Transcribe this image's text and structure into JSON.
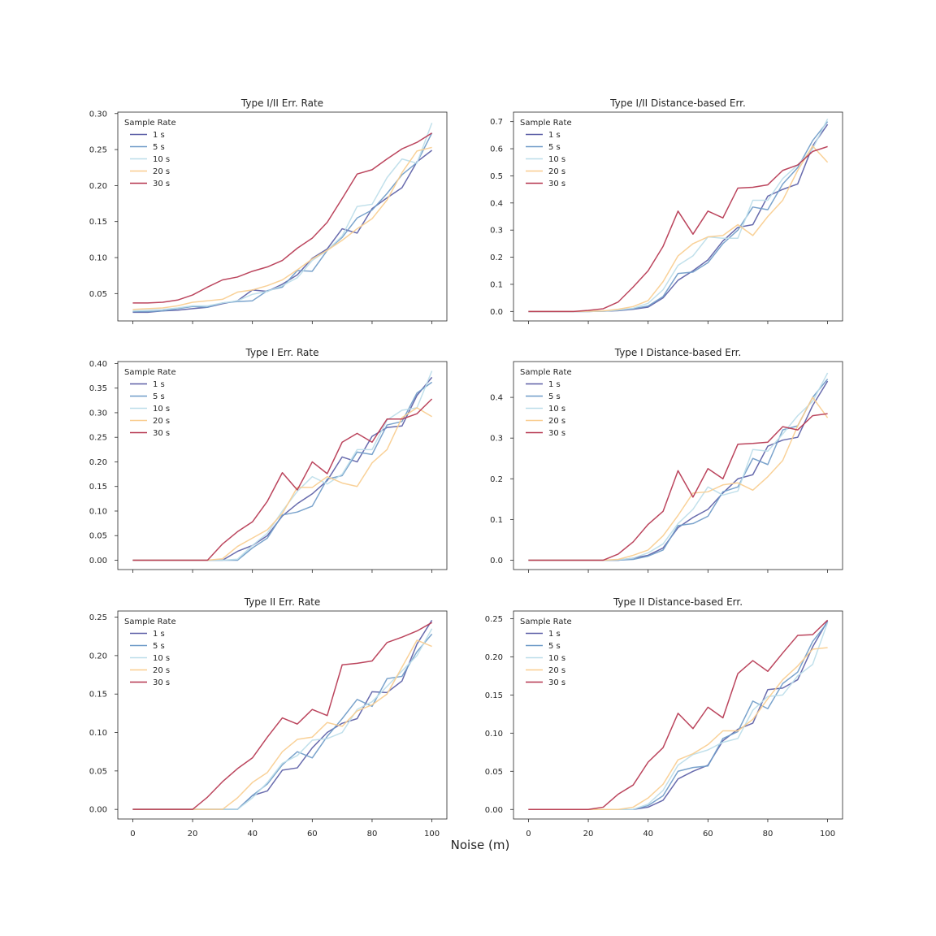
{
  "figure": {
    "xlabel": "Noise (m)"
  },
  "legend": {
    "title": "Sample Rate",
    "labels": [
      "1 s",
      "5 s",
      "10 s",
      "20 s",
      "30 s"
    ],
    "colors": [
      "#5b5ea6",
      "#6f9bc8",
      "#bcdde9",
      "#f9cd8f",
      "#b5354f"
    ]
  },
  "chart_data": [
    {
      "type": "line",
      "title": "Type I/II Err. Rate",
      "xlabel": "",
      "ylabel": "",
      "xlim": [
        -5,
        105
      ],
      "ylim": [
        0.012,
        0.302
      ],
      "xticks": [
        0,
        20,
        40,
        60,
        80,
        100
      ],
      "show_xtick_labels": false,
      "yticks": [
        0.05,
        0.1,
        0.15,
        0.2,
        0.25,
        0.3
      ],
      "ytick_labels": [
        "0.05",
        "0.10",
        "0.15",
        "0.20",
        "0.25",
        "0.30"
      ],
      "x": [
        0,
        5,
        10,
        15,
        20,
        25,
        30,
        35,
        40,
        45,
        50,
        55,
        60,
        65,
        70,
        75,
        80,
        85,
        90,
        95,
        100
      ],
      "series": [
        {
          "name": "1 s",
          "values": [
            0.024,
            0.024,
            0.026,
            0.027,
            0.029,
            0.031,
            0.036,
            0.04,
            0.055,
            0.053,
            0.063,
            0.076,
            0.099,
            0.112,
            0.14,
            0.134,
            0.168,
            0.183,
            0.197,
            0.233,
            0.249
          ]
        },
        {
          "name": "5 s",
          "values": [
            0.025,
            0.025,
            0.026,
            0.029,
            0.032,
            0.031,
            0.037,
            0.039,
            0.04,
            0.054,
            0.059,
            0.082,
            0.081,
            0.11,
            0.128,
            0.155,
            0.166,
            0.189,
            0.215,
            0.232,
            0.273
          ]
        },
        {
          "name": "10 s",
          "values": [
            0.026,
            0.027,
            0.028,
            0.03,
            0.033,
            0.033,
            0.037,
            0.04,
            0.049,
            0.053,
            0.061,
            0.072,
            0.096,
            0.11,
            0.13,
            0.171,
            0.174,
            0.211,
            0.237,
            0.231,
            0.287
          ]
        },
        {
          "name": "20 s",
          "values": [
            0.028,
            0.029,
            0.03,
            0.033,
            0.038,
            0.04,
            0.042,
            0.052,
            0.055,
            0.061,
            0.069,
            0.083,
            0.098,
            0.11,
            0.124,
            0.14,
            0.154,
            0.18,
            0.218,
            0.248,
            0.253
          ]
        },
        {
          "name": "30 s",
          "values": [
            0.037,
            0.037,
            0.038,
            0.041,
            0.048,
            0.059,
            0.069,
            0.073,
            0.081,
            0.087,
            0.096,
            0.113,
            0.127,
            0.149,
            0.182,
            0.216,
            0.222,
            0.237,
            0.251,
            0.26,
            0.273
          ]
        }
      ]
    },
    {
      "type": "line",
      "title": "Type I/II Distance-based Err.",
      "xlabel": "",
      "ylabel": "",
      "xlim": [
        -5,
        105
      ],
      "ylim": [
        -0.035,
        0.735
      ],
      "xticks": [
        0,
        20,
        40,
        60,
        80,
        100
      ],
      "show_xtick_labels": false,
      "yticks": [
        0.0,
        0.1,
        0.2,
        0.3,
        0.4,
        0.5,
        0.6,
        0.7
      ],
      "ytick_labels": [
        "0.0",
        "0.1",
        "0.2",
        "0.3",
        "0.4",
        "0.5",
        "0.6",
        "0.7"
      ],
      "x": [
        0,
        5,
        10,
        15,
        20,
        25,
        30,
        35,
        40,
        45,
        50,
        55,
        60,
        65,
        70,
        75,
        80,
        85,
        90,
        95,
        100
      ],
      "series": [
        {
          "name": "1 s",
          "values": [
            0.0,
            0.0,
            0.0,
            0.0,
            0.0,
            0.001,
            0.003,
            0.008,
            0.016,
            0.05,
            0.115,
            0.15,
            0.19,
            0.26,
            0.31,
            0.32,
            0.425,
            0.45,
            0.47,
            0.61,
            0.69
          ]
        },
        {
          "name": "5 s",
          "values": [
            0.0,
            0.0,
            0.0,
            0.0,
            0.0,
            0.001,
            0.004,
            0.01,
            0.02,
            0.055,
            0.14,
            0.145,
            0.18,
            0.25,
            0.3,
            0.385,
            0.375,
            0.47,
            0.53,
            0.63,
            0.7
          ]
        },
        {
          "name": "10 s",
          "values": [
            0.0,
            0.0,
            0.0,
            0.0,
            0.0,
            0.001,
            0.005,
            0.012,
            0.03,
            0.08,
            0.17,
            0.205,
            0.275,
            0.27,
            0.27,
            0.41,
            0.41,
            0.49,
            0.54,
            0.6,
            0.71
          ]
        },
        {
          "name": "20 s",
          "values": [
            0.0,
            0.0,
            0.0,
            0.0,
            0.001,
            0.002,
            0.008,
            0.018,
            0.04,
            0.11,
            0.205,
            0.25,
            0.275,
            0.28,
            0.32,
            0.28,
            0.35,
            0.41,
            0.52,
            0.61,
            0.55
          ]
        },
        {
          "name": "30 s",
          "values": [
            0.0,
            0.0,
            0.0,
            0.0,
            0.004,
            0.01,
            0.035,
            0.09,
            0.15,
            0.24,
            0.37,
            0.285,
            0.37,
            0.345,
            0.455,
            0.458,
            0.467,
            0.52,
            0.54,
            0.59,
            0.608
          ]
        }
      ]
    },
    {
      "type": "line",
      "title": "Type I Err. Rate",
      "xlabel": "",
      "ylabel": "",
      "xlim": [
        -5,
        105
      ],
      "ylim": [
        -0.019,
        0.404
      ],
      "xticks": [
        0,
        20,
        40,
        60,
        80,
        100
      ],
      "show_xtick_labels": false,
      "yticks": [
        0.0,
        0.05,
        0.1,
        0.15,
        0.2,
        0.25,
        0.3,
        0.35,
        0.4
      ],
      "ytick_labels": [
        "0.00",
        "0.05",
        "0.10",
        "0.15",
        "0.20",
        "0.25",
        "0.30",
        "0.35",
        "0.40"
      ],
      "x": [
        0,
        5,
        10,
        15,
        20,
        25,
        30,
        35,
        40,
        45,
        50,
        55,
        60,
        65,
        70,
        75,
        80,
        85,
        90,
        95,
        100
      ],
      "series": [
        {
          "name": "1 s",
          "values": [
            0.0,
            0.0,
            0.0,
            0.0,
            0.0,
            0.0,
            0.0,
            0.018,
            0.03,
            0.05,
            0.09,
            0.115,
            0.135,
            0.162,
            0.21,
            0.2,
            0.252,
            0.27,
            0.273,
            0.335,
            0.372
          ]
        },
        {
          "name": "5 s",
          "values": [
            0.0,
            0.0,
            0.0,
            0.0,
            0.0,
            0.0,
            0.0,
            0.0,
            0.025,
            0.045,
            0.092,
            0.098,
            0.11,
            0.165,
            0.172,
            0.22,
            0.215,
            0.275,
            0.282,
            0.34,
            0.362
          ]
        },
        {
          "name": "10 s",
          "values": [
            0.0,
            0.0,
            0.0,
            0.0,
            0.0,
            0.0,
            0.0,
            0.002,
            0.03,
            0.055,
            0.1,
            0.14,
            0.17,
            0.155,
            0.175,
            0.225,
            0.225,
            0.285,
            0.305,
            0.31,
            0.385
          ]
        },
        {
          "name": "20 s",
          "values": [
            0.0,
            0.0,
            0.0,
            0.0,
            0.0,
            0.0,
            0.003,
            0.028,
            0.045,
            0.062,
            0.095,
            0.148,
            0.148,
            0.17,
            0.157,
            0.15,
            0.198,
            0.225,
            0.29,
            0.31,
            0.292
          ]
        },
        {
          "name": "30 s",
          "values": [
            0.0,
            0.0,
            0.0,
            0.0,
            0.0,
            0.0,
            0.033,
            0.058,
            0.078,
            0.12,
            0.178,
            0.143,
            0.2,
            0.176,
            0.24,
            0.258,
            0.24,
            0.287,
            0.287,
            0.298,
            0.328
          ]
        }
      ]
    },
    {
      "type": "line",
      "title": "Type I Distance-based Err.",
      "xlabel": "",
      "ylabel": "",
      "xlim": [
        -5,
        105
      ],
      "ylim": [
        -0.023,
        0.488
      ],
      "xticks": [
        0,
        20,
        40,
        60,
        80,
        100
      ],
      "show_xtick_labels": false,
      "yticks": [
        0.0,
        0.1,
        0.2,
        0.3,
        0.4
      ],
      "ytick_labels": [
        "0.0",
        "0.1",
        "0.2",
        "0.3",
        "0.4"
      ],
      "x": [
        0,
        5,
        10,
        15,
        20,
        25,
        30,
        35,
        40,
        45,
        50,
        55,
        60,
        65,
        70,
        75,
        80,
        85,
        90,
        95,
        100
      ],
      "series": [
        {
          "name": "1 s",
          "values": [
            0.0,
            0.0,
            0.0,
            0.0,
            0.0,
            0.0,
            0.0,
            0.005,
            0.012,
            0.03,
            0.08,
            0.105,
            0.125,
            0.165,
            0.2,
            0.21,
            0.28,
            0.295,
            0.302,
            0.38,
            0.44
          ]
        },
        {
          "name": "5 s",
          "values": [
            0.0,
            0.0,
            0.0,
            0.0,
            0.0,
            0.0,
            0.0,
            0.002,
            0.01,
            0.025,
            0.085,
            0.09,
            0.108,
            0.168,
            0.18,
            0.25,
            0.235,
            0.32,
            0.33,
            0.4,
            0.445
          ]
        },
        {
          "name": "10 s",
          "values": [
            0.0,
            0.0,
            0.0,
            0.0,
            0.0,
            0.0,
            0.001,
            0.005,
            0.018,
            0.04,
            0.09,
            0.125,
            0.18,
            0.16,
            0.17,
            0.272,
            0.268,
            0.31,
            0.355,
            0.39,
            0.46
          ]
        },
        {
          "name": "20 s",
          "values": [
            0.0,
            0.0,
            0.0,
            0.0,
            0.0,
            0.0,
            0.002,
            0.012,
            0.025,
            0.06,
            0.11,
            0.165,
            0.168,
            0.185,
            0.19,
            0.172,
            0.205,
            0.245,
            0.33,
            0.4,
            0.35
          ]
        },
        {
          "name": "30 s",
          "values": [
            0.0,
            0.0,
            0.0,
            0.0,
            0.0,
            0.0,
            0.015,
            0.045,
            0.088,
            0.12,
            0.22,
            0.155,
            0.225,
            0.2,
            0.285,
            0.287,
            0.29,
            0.328,
            0.32,
            0.355,
            0.36
          ]
        }
      ]
    },
    {
      "type": "line",
      "title": "Type II Err. Rate",
      "xlabel": "",
      "ylabel": "",
      "xlim": [
        -5,
        105
      ],
      "ylim": [
        -0.0125,
        0.258
      ],
      "xticks": [
        0,
        20,
        40,
        60,
        80,
        100
      ],
      "show_xtick_labels": true,
      "xtick_labels": [
        "0",
        "20",
        "40",
        "60",
        "80",
        "100"
      ],
      "yticks": [
        0.0,
        0.05,
        0.1,
        0.15,
        0.2,
        0.25
      ],
      "ytick_labels": [
        "0.00",
        "0.05",
        "0.10",
        "0.15",
        "0.20",
        "0.25"
      ],
      "x": [
        0,
        5,
        10,
        15,
        20,
        25,
        30,
        35,
        40,
        45,
        50,
        55,
        60,
        65,
        70,
        75,
        80,
        85,
        90,
        95,
        100
      ],
      "series": [
        {
          "name": "1 s",
          "values": [
            0.0,
            0.0,
            0.0,
            0.0,
            0.0,
            0.0,
            0.0,
            0.0,
            0.018,
            0.024,
            0.051,
            0.054,
            0.08,
            0.1,
            0.112,
            0.118,
            0.153,
            0.152,
            0.167,
            0.215,
            0.246
          ]
        },
        {
          "name": "5 s",
          "values": [
            0.0,
            0.0,
            0.0,
            0.0,
            0.0,
            0.0,
            0.0,
            0.0,
            0.018,
            0.033,
            0.058,
            0.075,
            0.067,
            0.095,
            0.118,
            0.143,
            0.134,
            0.17,
            0.173,
            0.205,
            0.228
          ]
        },
        {
          "name": "10 s",
          "values": [
            0.0,
            0.0,
            0.0,
            0.0,
            0.0,
            0.0,
            0.0,
            0.0,
            0.015,
            0.035,
            0.06,
            0.07,
            0.09,
            0.092,
            0.1,
            0.13,
            0.14,
            0.16,
            0.18,
            0.2,
            0.235
          ]
        },
        {
          "name": "20 s",
          "values": [
            0.0,
            0.0,
            0.0,
            0.0,
            0.0,
            0.0,
            0.0,
            0.015,
            0.035,
            0.048,
            0.075,
            0.091,
            0.094,
            0.113,
            0.108,
            0.128,
            0.136,
            0.15,
            0.185,
            0.22,
            0.212
          ]
        },
        {
          "name": "30 s",
          "values": [
            0.0,
            0.0,
            0.0,
            0.0,
            0.0,
            0.016,
            0.036,
            0.053,
            0.067,
            0.094,
            0.119,
            0.111,
            0.13,
            0.122,
            0.188,
            0.19,
            0.193,
            0.217,
            0.224,
            0.232,
            0.243
          ]
        }
      ]
    },
    {
      "type": "line",
      "title": "Type II Distance-based Err.",
      "xlabel": "",
      "ylabel": "",
      "xlim": [
        -5,
        105
      ],
      "ylim": [
        -0.0125,
        0.26
      ],
      "xticks": [
        0,
        20,
        40,
        60,
        80,
        100
      ],
      "show_xtick_labels": true,
      "xtick_labels": [
        "0",
        "20",
        "40",
        "60",
        "80",
        "100"
      ],
      "yticks": [
        0.0,
        0.05,
        0.1,
        0.15,
        0.2,
        0.25
      ],
      "ytick_labels": [
        "0.00",
        "0.05",
        "0.10",
        "0.15",
        "0.20",
        "0.25"
      ],
      "x": [
        0,
        5,
        10,
        15,
        20,
        25,
        30,
        35,
        40,
        45,
        50,
        55,
        60,
        65,
        70,
        75,
        80,
        85,
        90,
        95,
        100
      ],
      "series": [
        {
          "name": "1 s",
          "values": [
            0.0,
            0.0,
            0.0,
            0.0,
            0.0,
            0.0,
            0.0,
            0.0,
            0.003,
            0.012,
            0.04,
            0.05,
            0.058,
            0.09,
            0.105,
            0.113,
            0.157,
            0.159,
            0.17,
            0.213,
            0.247
          ]
        },
        {
          "name": "5 s",
          "values": [
            0.0,
            0.0,
            0.0,
            0.0,
            0.0,
            0.0,
            0.0,
            0.0,
            0.005,
            0.018,
            0.05,
            0.055,
            0.057,
            0.093,
            0.102,
            0.142,
            0.132,
            0.165,
            0.18,
            0.22,
            0.245
          ]
        },
        {
          "name": "10 s",
          "values": [
            0.0,
            0.0,
            0.0,
            0.0,
            0.0,
            0.0,
            0.0,
            0.0,
            0.007,
            0.025,
            0.058,
            0.072,
            0.078,
            0.088,
            0.093,
            0.13,
            0.148,
            0.15,
            0.175,
            0.19,
            0.245
          ]
        },
        {
          "name": "20 s",
          "values": [
            0.0,
            0.0,
            0.0,
            0.0,
            0.0,
            0.0,
            0.0,
            0.003,
            0.015,
            0.033,
            0.065,
            0.073,
            0.085,
            0.103,
            0.103,
            0.118,
            0.145,
            0.17,
            0.188,
            0.21,
            0.212
          ]
        },
        {
          "name": "30 s",
          "values": [
            0.0,
            0.0,
            0.0,
            0.0,
            0.0,
            0.003,
            0.02,
            0.032,
            0.062,
            0.081,
            0.126,
            0.106,
            0.134,
            0.12,
            0.178,
            0.195,
            0.181,
            0.205,
            0.228,
            0.229,
            0.248
          ]
        }
      ]
    }
  ]
}
